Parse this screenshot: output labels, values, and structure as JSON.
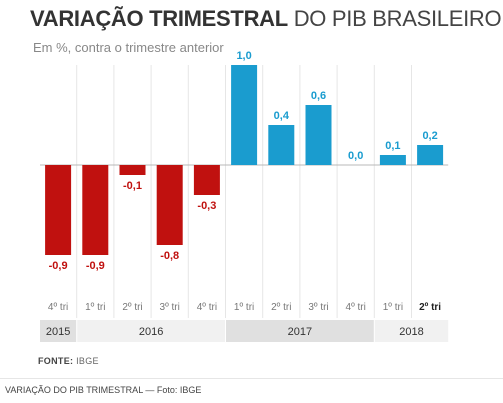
{
  "title_bold": "VARIAÇÃO TRIMESTRAL",
  "title_light": "DO PIB BRASILEIRO",
  "subtitle": "Em %, contra o trimestre anterior",
  "source_label": "FONTE:",
  "source_value": "IBGE",
  "caption": "VARIAÇÃO DO PIB TRIMESTRAL — Foto: IBGE",
  "colors": {
    "negative": "#c0110f",
    "positive": "#1a9ccf",
    "band_dark": "#e0e0e0",
    "band_light": "#f1f1f1"
  },
  "chart_data": {
    "type": "bar",
    "categories": [
      "4º tri",
      "1º tri",
      "2º tri",
      "3º tri",
      "4º tri",
      "1º tri",
      "2º tri",
      "3º tri",
      "4º tri",
      "1º tri",
      "2º tri"
    ],
    "values": [
      -0.9,
      -0.9,
      -0.1,
      -0.8,
      -0.3,
      1.0,
      0.4,
      0.6,
      0.0,
      0.1,
      0.2
    ],
    "data_labels": [
      "-0,9",
      "-0,9",
      "-0,1",
      "-0,8",
      "-0,3",
      "1,0",
      "0,4",
      "0,6",
      "0,0",
      "0,1",
      "0,2"
    ],
    "years": [
      {
        "label": "2015",
        "start": 0,
        "end": 0
      },
      {
        "label": "2016",
        "start": 1,
        "end": 4
      },
      {
        "label": "2017",
        "start": 5,
        "end": 8
      },
      {
        "label": "2018",
        "start": 9,
        "end": 10
      }
    ],
    "highlight_index": 10,
    "ylim": [
      -1.1,
      1.1
    ]
  }
}
